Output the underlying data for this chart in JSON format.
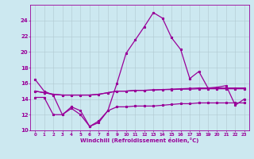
{
  "x": [
    0,
    1,
    2,
    3,
    4,
    5,
    6,
    7,
    8,
    9,
    10,
    11,
    12,
    13,
    14,
    15,
    16,
    17,
    18,
    19,
    20,
    21,
    22,
    23
  ],
  "line1": [
    16.5,
    15.0,
    14.5,
    12.0,
    13.0,
    12.5,
    10.5,
    11.2,
    12.5,
    16.0,
    19.8,
    21.5,
    23.2,
    25.0,
    24.3,
    21.8,
    20.3,
    16.6,
    17.5,
    15.4,
    15.5,
    15.7,
    13.2,
    14.0
  ],
  "line2": [
    15.0,
    14.8,
    14.6,
    14.5,
    14.5,
    14.5,
    14.5,
    14.6,
    14.8,
    15.0,
    15.0,
    15.1,
    15.1,
    15.15,
    15.2,
    15.2,
    15.25,
    15.25,
    15.3,
    15.3,
    15.3,
    15.3,
    15.3,
    15.3
  ],
  "line3": [
    15.0,
    14.8,
    14.6,
    14.5,
    14.5,
    14.5,
    14.5,
    14.6,
    14.8,
    15.0,
    15.0,
    15.1,
    15.1,
    15.15,
    15.2,
    15.25,
    15.3,
    15.35,
    15.4,
    15.4,
    15.4,
    15.4,
    15.4,
    15.4
  ],
  "line4": [
    14.2,
    14.2,
    12.0,
    12.0,
    12.8,
    12.0,
    10.5,
    11.0,
    12.5,
    13.0,
    13.0,
    13.1,
    13.1,
    13.1,
    13.2,
    13.3,
    13.4,
    13.4,
    13.5,
    13.5,
    13.5,
    13.5,
    13.5,
    13.5
  ],
  "line_color": "#990099",
  "bg_color": "#cce8f0",
  "grid_color": "#b0c8d0",
  "xlabel": "Windchill (Refroidissement éolien,°C)",
  "xlim": [
    -0.5,
    23.5
  ],
  "ylim": [
    10,
    26
  ],
  "yticks": [
    10,
    12,
    14,
    16,
    18,
    20,
    22,
    24
  ],
  "xticks": [
    0,
    1,
    2,
    3,
    4,
    5,
    6,
    7,
    8,
    9,
    10,
    11,
    12,
    13,
    14,
    15,
    16,
    17,
    18,
    19,
    20,
    21,
    22,
    23
  ]
}
